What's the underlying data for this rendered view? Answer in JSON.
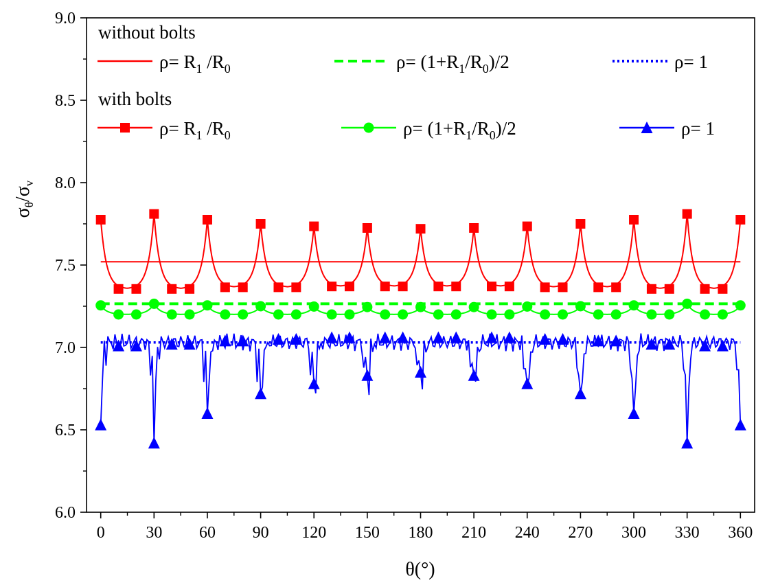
{
  "chart_data": {
    "type": "line",
    "title": "",
    "xlabel": "θ(°)",
    "ylabel": {
      "main": "σ",
      "sub1": "θ",
      "sep": "/σ",
      "sub2": "v"
    },
    "xlim": [
      -8,
      368
    ],
    "ylim": [
      6.0,
      9.0
    ],
    "xticks": [
      "0",
      "30",
      "60",
      "90",
      "120",
      "150",
      "180",
      "210",
      "240",
      "270",
      "300",
      "330",
      "360"
    ],
    "yticks": [
      "6.0",
      "6.5",
      "7.0",
      "7.5",
      "8.0",
      "8.5",
      "9.0"
    ],
    "legend": {
      "group_without": "without bolts",
      "group_with": "with bolts",
      "label_ratio": {
        "pre": "ρ= R",
        "sub1": "1",
        "mid": " /R",
        "sub2": "0"
      },
      "label_avg": {
        "pre": "ρ= (1+R",
        "sub1": "1",
        "mid": "/R",
        "sub2": "0",
        "post": ")/2"
      },
      "label_one": "ρ= 1"
    },
    "series": [
      {
        "name": "without bolts ρ=R1/R0",
        "color": "#ff0000",
        "style": "solid",
        "value": 7.52
      },
      {
        "name": "without bolts ρ=(1+R1/R0)/2",
        "color": "#00ff00",
        "style": "dash",
        "value": 7.265
      },
      {
        "name": "without bolts ρ=1",
        "color": "#0000ff",
        "style": "dot",
        "value": 7.03
      },
      {
        "name": "with bolts ρ=R1/R0",
        "color": "#ff0000",
        "marker": "square",
        "x": [
          0,
          10,
          20,
          30,
          40,
          50,
          60,
          70,
          80,
          90,
          100,
          110,
          120,
          130,
          140,
          150,
          160,
          170,
          180,
          190,
          200,
          210,
          220,
          230,
          240,
          250,
          260,
          270,
          280,
          290,
          300,
          310,
          320,
          330,
          340,
          350,
          360
        ],
        "y": [
          7.775,
          7.355,
          7.355,
          7.81,
          7.355,
          7.355,
          7.775,
          7.365,
          7.365,
          7.75,
          7.365,
          7.365,
          7.735,
          7.37,
          7.37,
          7.725,
          7.37,
          7.37,
          7.72,
          7.37,
          7.37,
          7.725,
          7.37,
          7.37,
          7.735,
          7.365,
          7.365,
          7.75,
          7.365,
          7.365,
          7.775,
          7.355,
          7.355,
          7.81,
          7.355,
          7.355,
          7.775
        ]
      },
      {
        "name": "with bolts ρ=(1+R1/R0)/2",
        "color": "#00ff00",
        "marker": "circle",
        "x": [
          0,
          10,
          20,
          30,
          40,
          50,
          60,
          70,
          80,
          90,
          100,
          110,
          120,
          130,
          140,
          150,
          160,
          170,
          180,
          190,
          200,
          210,
          220,
          230,
          240,
          250,
          260,
          270,
          280,
          290,
          300,
          310,
          320,
          330,
          340,
          350,
          360
        ],
        "y": [
          7.255,
          7.2,
          7.2,
          7.265,
          7.2,
          7.2,
          7.255,
          7.2,
          7.2,
          7.25,
          7.2,
          7.2,
          7.248,
          7.2,
          7.2,
          7.245,
          7.2,
          7.2,
          7.245,
          7.2,
          7.2,
          7.245,
          7.2,
          7.2,
          7.248,
          7.2,
          7.2,
          7.25,
          7.2,
          7.2,
          7.255,
          7.2,
          7.2,
          7.265,
          7.2,
          7.2,
          7.255
        ]
      },
      {
        "name": "with bolts ρ=1",
        "color": "#0000ff",
        "marker": "triangle",
        "x": [
          0,
          10,
          20,
          30,
          40,
          50,
          60,
          70,
          80,
          90,
          100,
          110,
          120,
          130,
          140,
          150,
          160,
          170,
          180,
          190,
          200,
          210,
          220,
          230,
          240,
          250,
          260,
          270,
          280,
          290,
          300,
          310,
          320,
          330,
          340,
          350,
          360
        ],
        "y": [
          6.53,
          7.01,
          7.01,
          6.42,
          7.02,
          7.02,
          6.6,
          7.04,
          7.04,
          6.72,
          7.05,
          7.05,
          6.78,
          7.06,
          7.06,
          6.83,
          7.06,
          7.06,
          6.85,
          7.06,
          7.06,
          6.83,
          7.06,
          7.06,
          6.78,
          7.05,
          7.05,
          6.72,
          7.04,
          7.04,
          6.6,
          7.02,
          7.02,
          6.42,
          7.01,
          7.01,
          6.53
        ]
      }
    ]
  }
}
